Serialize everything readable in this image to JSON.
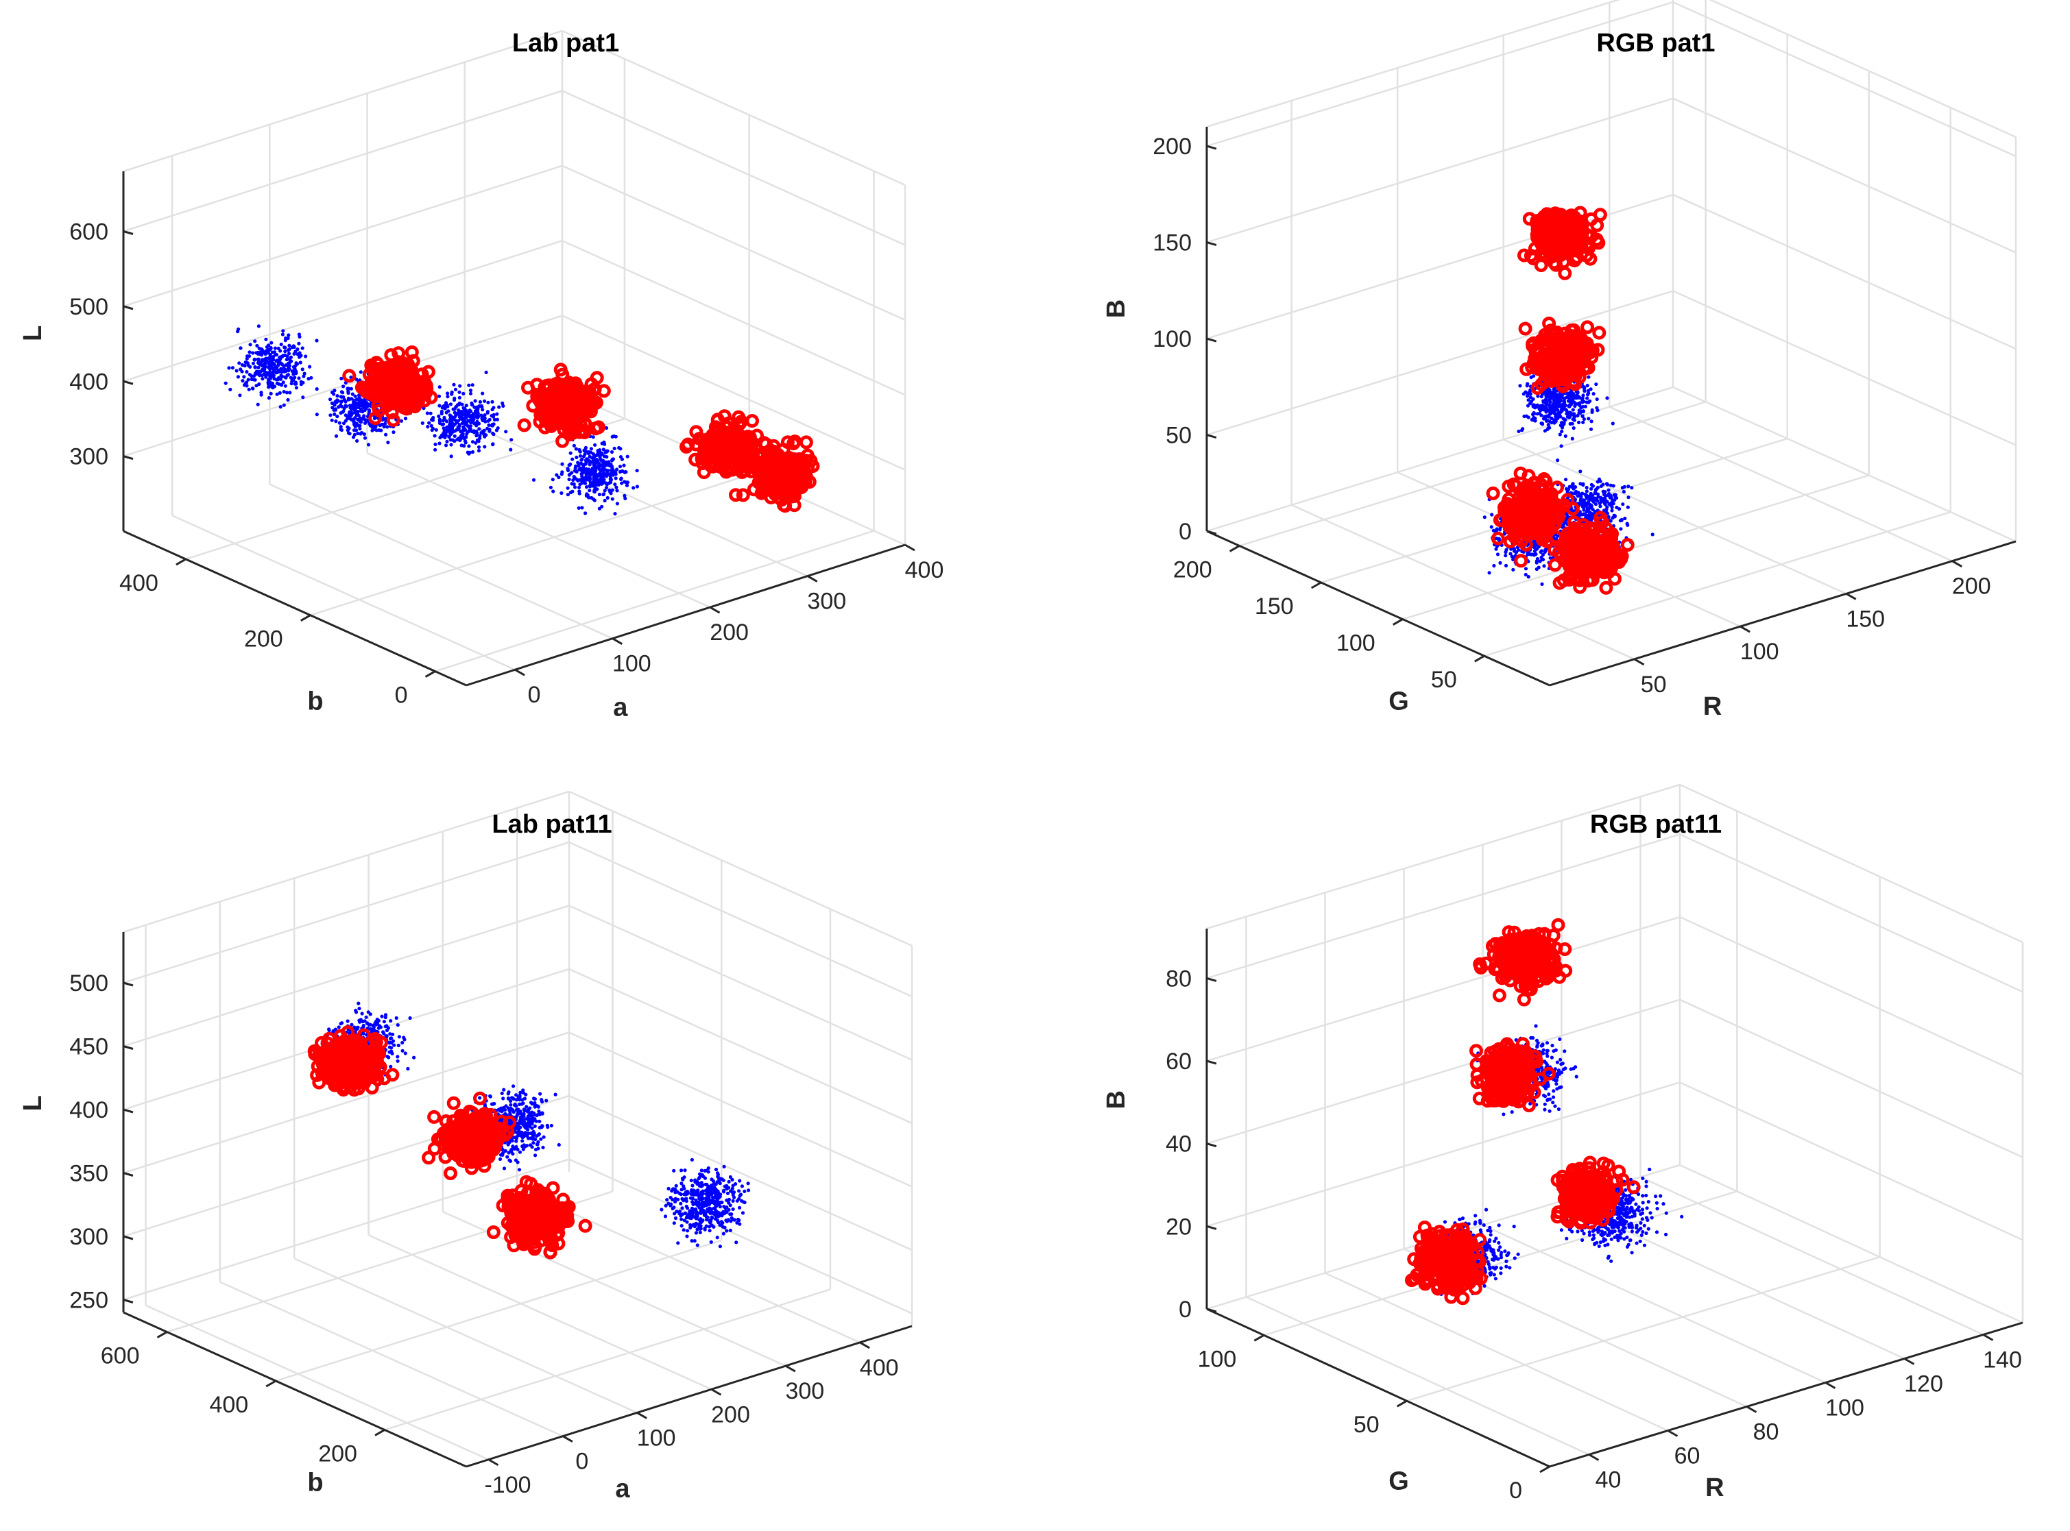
{
  "colors": {
    "series_blue": "#0000ff",
    "series_red": "#ff0000",
    "axis": "#262626",
    "grid": "#e1e1e1",
    "background": "#ffffff"
  },
  "chart_data": [
    {
      "type": "scatter",
      "projection": "3d",
      "title": "Lab pat1",
      "xlabel": "a",
      "ylabel": "b",
      "zlabel": "L",
      "xticks": [
        "0",
        "100",
        "200",
        "300",
        "400"
      ],
      "yticks": [
        "0",
        "200",
        "400"
      ],
      "zticks": [
        "300",
        "400",
        "500",
        "600"
      ],
      "xlim": [
        -50,
        400
      ],
      "ylim": [
        -50,
        500
      ],
      "zlim": [
        200,
        680
      ],
      "grid": true,
      "series": [
        {
          "marker": "dot",
          "color": "#0000ff",
          "cluster_centers": [
            [
              40,
              400,
              420
            ],
            [
              70,
              300,
              390
            ],
            [
              120,
              220,
              380
            ],
            [
              180,
              100,
              330
            ]
          ],
          "approx_count": 6000
        },
        {
          "marker": "circle",
          "color": "#ff0000",
          "cluster_centers": [
            [
              90,
              280,
              420
            ],
            [
              180,
              150,
              400
            ],
            [
              300,
              80,
              320
            ],
            [
              330,
              40,
              290
            ]
          ],
          "approx_count": 2000
        }
      ]
    },
    {
      "type": "scatter",
      "projection": "3d",
      "title": "RGB pat1",
      "xlabel": "R",
      "ylabel": "G",
      "zlabel": "B",
      "xticks": [
        "50",
        "100",
        "150",
        "200"
      ],
      "yticks": [
        "50",
        "100",
        "150",
        "200"
      ],
      "zticks": [
        "0",
        "50",
        "100",
        "150",
        "200"
      ],
      "xlim": [
        10,
        230
      ],
      "ylim": [
        10,
        220
      ],
      "zlim": [
        0,
        210
      ],
      "grid": true,
      "series": [
        {
          "marker": "dot",
          "color": "#0000ff",
          "cluster_centers": [
            [
              40,
              60,
              50
            ],
            [
              55,
              45,
              60
            ],
            [
              45,
              50,
              120
            ]
          ],
          "approx_count": 5000
        },
        {
          "marker": "circle",
          "color": "#ff0000",
          "cluster_centers": [
            [
              40,
              60,
              60
            ],
            [
              55,
              45,
              40
            ],
            [
              50,
              55,
              140
            ],
            [
              55,
              60,
              200
            ]
          ],
          "approx_count": 3000
        }
      ]
    },
    {
      "type": "scatter",
      "projection": "3d",
      "title": "Lab pat11",
      "xlabel": "a",
      "ylabel": "b",
      "zlabel": "L",
      "xticks": [
        "-100",
        "0",
        "100",
        "200",
        "300",
        "400"
      ],
      "yticks": [
        "200",
        "400",
        "600"
      ],
      "zticks": [
        "250",
        "300",
        "350",
        "400",
        "450",
        "500"
      ],
      "xlim": [
        -130,
        470
      ],
      "ylim": [
        50,
        680
      ],
      "zlim": [
        240,
        540
      ],
      "grid": true,
      "series": [
        {
          "marker": "dot",
          "color": "#0000ff",
          "cluster_centers": [
            [
              60,
              500,
              450
            ],
            [
              150,
              350,
              400
            ],
            [
              300,
              200,
              340
            ]
          ],
          "approx_count": 6000
        },
        {
          "marker": "circle",
          "color": "#ff0000",
          "cluster_centers": [
            [
              40,
              500,
              440
            ],
            [
              120,
              380,
              390
            ],
            [
              160,
              320,
              330
            ]
          ],
          "approx_count": 4000
        }
      ]
    },
    {
      "type": "scatter",
      "projection": "3d",
      "title": "RGB pat11",
      "xlabel": "R",
      "ylabel": "G",
      "zlabel": "B",
      "xticks": [
        "40",
        "60",
        "80",
        "100",
        "120",
        "140"
      ],
      "yticks": [
        "0",
        "50",
        "100"
      ],
      "zticks": [
        "0",
        "20",
        "40",
        "60",
        "80"
      ],
      "xlim": [
        30,
        150
      ],
      "ylim": [
        0,
        120
      ],
      "zlim": [
        0,
        92
      ],
      "grid": true,
      "series": [
        {
          "marker": "dot",
          "color": "#0000ff",
          "cluster_centers": [
            [
              60,
              70,
              20
            ],
            [
              75,
              70,
              60
            ],
            [
              90,
              60,
              25
            ]
          ],
          "approx_count": 6000
        },
        {
          "marker": "circle",
          "color": "#ff0000",
          "cluster_centers": [
            [
              55,
              70,
              20
            ],
            [
              72,
              72,
              60
            ],
            [
              85,
              62,
              30
            ],
            [
              78,
              75,
              85
            ]
          ],
          "approx_count": 5000
        }
      ]
    }
  ]
}
